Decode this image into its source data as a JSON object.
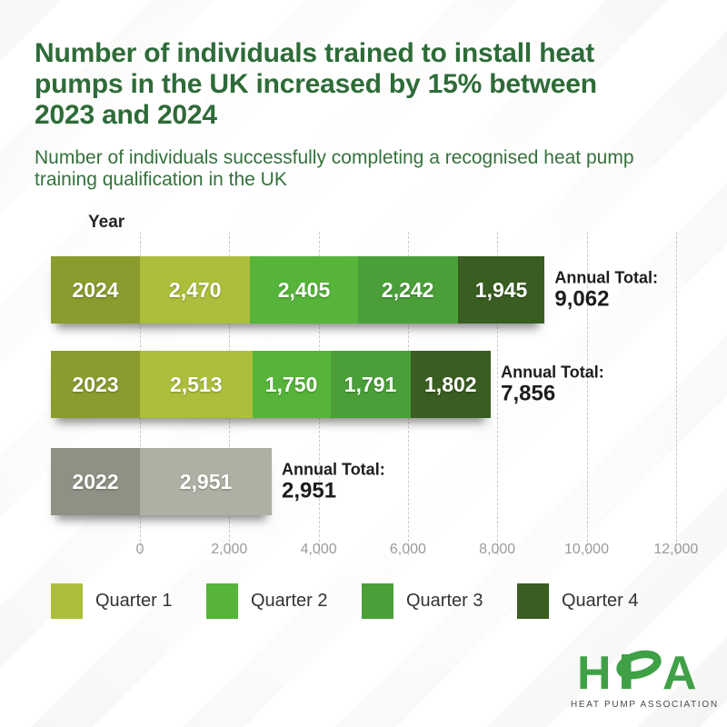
{
  "page": {
    "title": "Number of individuals trained to install heat pumps in the UK increased by 15% between 2023 and 2024",
    "subtitle": "Number of individuals successfully completing a recognised heat pump training qualification in the UK"
  },
  "colors": {
    "title_green": "#2e6b38",
    "subtitle_green": "#35713c",
    "year_block_olive": "#8b9b2e",
    "year_block_gray": "#8d9284",
    "gray_bar": "#adb0a3",
    "quarter1": "#acbe3b",
    "quarter2": "#56b43a",
    "quarter3": "#4b9f39",
    "quarter4": "#3a5d21",
    "tick_gray": "#9b9b9b",
    "logo_green": "#3fa046"
  },
  "chart_data": {
    "type": "bar",
    "orientation": "horizontal-stacked",
    "axis_column_header": "Year",
    "categories": [
      "2024",
      "2023",
      "2022"
    ],
    "series": [
      {
        "name": "Quarter 1",
        "color": "#acbe3b",
        "values": [
          2470,
          2513,
          null
        ]
      },
      {
        "name": "Quarter 2",
        "color": "#56b43a",
        "values": [
          2405,
          1750,
          null
        ]
      },
      {
        "name": "Quarter 3",
        "color": "#4b9f39",
        "values": [
          2242,
          1791,
          null
        ]
      },
      {
        "name": "Quarter 4",
        "color": "#3a5d21",
        "values": [
          1945,
          1802,
          null
        ]
      }
    ],
    "rows": [
      {
        "year": "2024",
        "year_color": "#8b9b2e",
        "segments": [
          {
            "quarter": "Quarter 1",
            "value": 2470,
            "label": "2,470",
            "color": "#acbe3b"
          },
          {
            "quarter": "Quarter 2",
            "value": 2405,
            "label": "2,405",
            "color": "#56b43a"
          },
          {
            "quarter": "Quarter 3",
            "value": 2242,
            "label": "2,242",
            "color": "#4b9f39"
          },
          {
            "quarter": "Quarter 4",
            "value": 1945,
            "label": "1,945",
            "color": "#3a5d21"
          }
        ],
        "annual_total": "9,062"
      },
      {
        "year": "2023",
        "year_color": "#8b9b2e",
        "segments": [
          {
            "quarter": "Quarter 1",
            "value": 2513,
            "label": "2,513",
            "color": "#acbe3b"
          },
          {
            "quarter": "Quarter 2",
            "value": 1750,
            "label": "1,750",
            "color": "#56b43a"
          },
          {
            "quarter": "Quarter 3",
            "value": 1791,
            "label": "1,791",
            "color": "#4b9f39"
          },
          {
            "quarter": "Quarter 4",
            "value": 1802,
            "label": "1,802",
            "color": "#3a5d21"
          }
        ],
        "annual_total": "7,856"
      },
      {
        "year": "2022",
        "year_color": "#8d9284",
        "segments": [
          {
            "quarter": "Annual (unsegmented)",
            "value": 2951,
            "label": "2,951",
            "color": "#adb0a3"
          }
        ],
        "annual_total": "2,951"
      }
    ],
    "annual_total_label": "Annual Total:",
    "xticks": [
      "0",
      "2,000",
      "4,000",
      "6,000",
      "8,000",
      "10,000",
      "12,000"
    ],
    "xtick_values": [
      0,
      2000,
      4000,
      6000,
      8000,
      10000,
      12000
    ],
    "xlim": [
      0,
      12000
    ],
    "gridlines": "vertical-dashed",
    "legend_position": "bottom",
    "legend": [
      {
        "label": "Quarter 1",
        "color": "#acbe3b"
      },
      {
        "label": "Quarter 2",
        "color": "#56b43a"
      },
      {
        "label": "Quarter 3",
        "color": "#4b9f39"
      },
      {
        "label": "Quarter 4",
        "color": "#3a5d21"
      }
    ]
  },
  "logo": {
    "text": "HPA",
    "letters": [
      "H",
      "A"
    ],
    "subtext": "HEAT PUMP ASSOCIATION",
    "color": "#3fa046"
  }
}
